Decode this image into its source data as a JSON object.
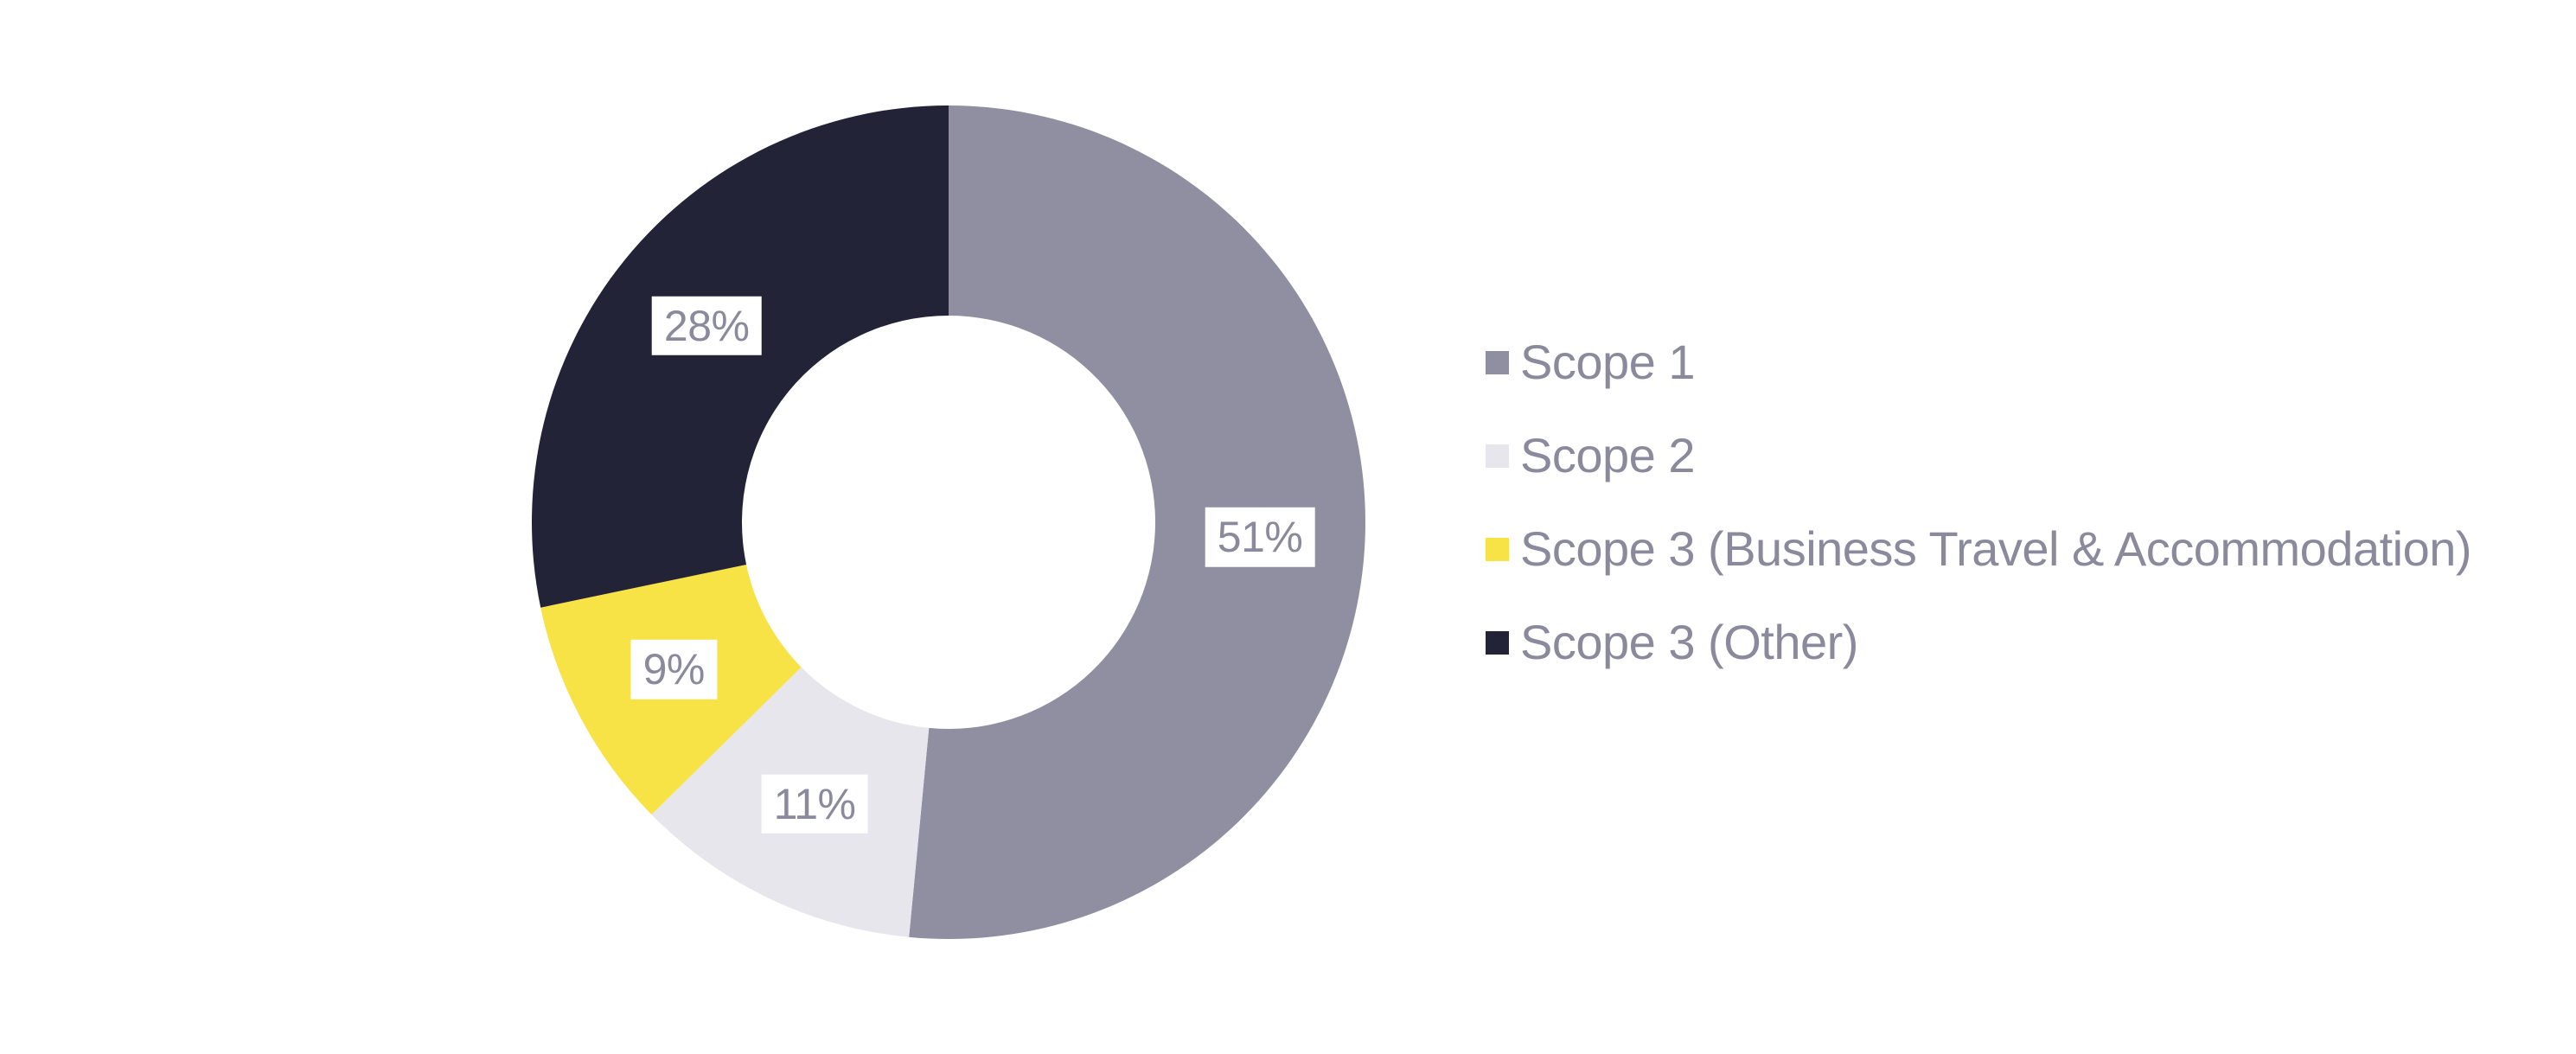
{
  "chart_data": {
    "type": "pie",
    "donut": true,
    "inner_radius_ratio": 0.5,
    "start_angle_deg": 0,
    "direction": "clockwise",
    "legend_position": "right",
    "grid": false,
    "title": "",
    "labels_format": "percent",
    "background_color": "#ffffff",
    "text_color": "#8a8a9c",
    "label_background_color": "#ffffff",
    "series": [
      {
        "name": "Scope 1",
        "value": 51,
        "label": "51%",
        "color": "#8f8fa1"
      },
      {
        "name": "Scope 2",
        "value": 11,
        "label": "11%",
        "color": "#e6e6ec"
      },
      {
        "name": "Scope 3 (Business Travel & Accommodation)",
        "value": 9,
        "label": "9%",
        "color": "#f8e347"
      },
      {
        "name": "Scope 3 (Other)",
        "value": 28,
        "label": "28%",
        "color": "#232338"
      }
    ]
  }
}
